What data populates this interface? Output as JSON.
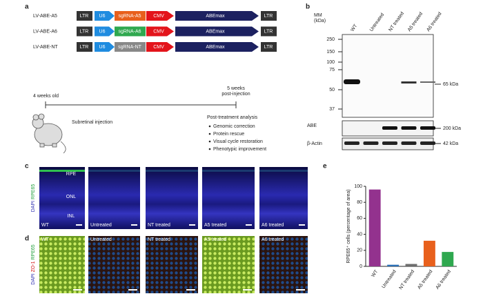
{
  "panel_a": {
    "label": "a",
    "constructs": [
      {
        "name": "LV-ABE-A5",
        "elements": [
          "LTR",
          "U6",
          "sgRNA-A5",
          "CMV",
          "ABEmax",
          "LTR"
        ]
      },
      {
        "name": "LV-ABE-A6",
        "elements": [
          "LTR",
          "U6",
          "sgRNA-A6",
          "CMV",
          "ABEmax",
          "LTR"
        ]
      },
      {
        "name": "LV-ABE-NT",
        "elements": [
          "LTR",
          "U6",
          "sgRNA-NT",
          "CMV",
          "ABEmax",
          "LTR"
        ]
      }
    ],
    "timeline_start": "4 weeks old",
    "timeline_end": "5 weeks\npost-injection",
    "injection": "Subretinal injection",
    "analysis_title": "Post-treatment analysis",
    "analysis_items": [
      "Genomic correction",
      "Protein rescue",
      "Visual cycle restoration",
      "Phenotypic improvement"
    ]
  },
  "panel_b": {
    "label": "b",
    "mm_label": "MM\n(kDa)",
    "lanes": [
      "WT",
      "Untreated",
      "NT treated",
      "A5 treated",
      "A6 treated"
    ],
    "markers": [
      250,
      150,
      100,
      75,
      50,
      37
    ],
    "band_label": "65 kDa",
    "abe_label": "ABE",
    "abe_size": "200 kDa",
    "actin_label": "β-Actin",
    "actin_size": "42 kDa"
  },
  "panel_c": {
    "label": "c",
    "stain": [
      "DAPI",
      "RPE65"
    ],
    "layers": [
      "RPE",
      "ONL",
      "INL"
    ],
    "images": [
      "WT",
      "Untreated",
      "NT treated",
      "A5 treated",
      "A6 treated"
    ]
  },
  "panel_d": {
    "label": "d",
    "stain": [
      "DAPI",
      "ZO-1",
      "RPE65"
    ],
    "images": [
      "WT",
      "Untreated",
      "NT treated",
      "A5 treated",
      "A6 treated"
    ]
  },
  "chart_data": {
    "type": "bar",
    "label": "e",
    "y_label": "RPE65⁺ cells (percentage of area)",
    "categories": [
      "WT",
      "Untreated",
      "NT treated",
      "A5 treated",
      "A6 treated"
    ],
    "values": [
      96,
      2,
      3,
      32,
      18
    ],
    "colors": [
      "#93328e",
      "#2a6fb5",
      "#6d6d6d",
      "#e8601c",
      "#2fa84f"
    ],
    "ylim": [
      0,
      100
    ],
    "yticks": [
      0,
      20,
      40,
      60,
      80,
      100
    ]
  }
}
